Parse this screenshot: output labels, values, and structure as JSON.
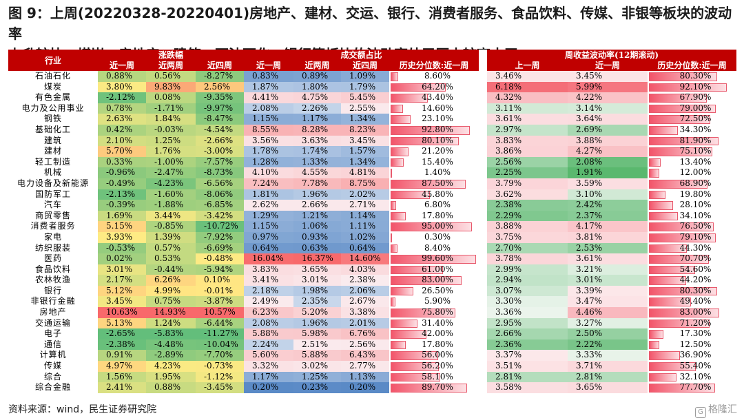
{
  "title_lines": [
    "图 9：上周(20220328-20220401)房地产、建材、交运、银行、消费者服务、食品饮料、传媒、非银等板块的波动率",
    "上升较快，煤炭、房地产、建筑、石油石化、银行等板块的波动率处于历史较高水平"
  ],
  "headers": {
    "industry": "行业",
    "group_change": "涨跌幅",
    "group_turnover": "成交额占比",
    "group_vol": "周收益波动率(12期滚动)",
    "change_cols": [
      "近一周",
      "近两周",
      "近四周"
    ],
    "turnover_cols": [
      "近一周",
      "近两周",
      "近四周",
      "历史分位数:近一周"
    ],
    "vol_cols": [
      "上一周",
      "近一周",
      "历史分位数:近一周"
    ]
  },
  "colors": {
    "header_bg": "#c00000",
    "pct_bar": "#f2556a"
  },
  "rows": [
    {
      "name": "石油石化",
      "chg": [
        "0.88%",
        "0.56%",
        "-8.27%"
      ],
      "to": [
        "0.83%",
        "0.89%",
        "1.09%"
      ],
      "to_pct": "8.60%",
      "vol": [
        "3.46%",
        "3.45%"
      ],
      "vol_pct": "80.30%"
    },
    {
      "name": "煤炭",
      "chg": [
        "3.80%",
        "9.83%",
        "2.56%"
      ],
      "to": [
        "1.87%",
        "1.80%",
        "1.79%"
      ],
      "to_pct": "64.20%",
      "vol": [
        "6.18%",
        "5.99%"
      ],
      "vol_pct": "92.10%"
    },
    {
      "name": "有色金属",
      "chg": [
        "-2.12%",
        "0.08%",
        "-9.35%"
      ],
      "to": [
        "4.41%",
        "4.75%",
        "5.45%"
      ],
      "to_pct": "43.40%",
      "vol": [
        "4.32%",
        "4.22%"
      ],
      "vol_pct": "67.90%"
    },
    {
      "name": "电力及公用事业",
      "chg": [
        "0.78%",
        "-1.71%",
        "-9.97%"
      ],
      "to": [
        "2.08%",
        "2.26%",
        "2.55%"
      ],
      "to_pct": "14.60%",
      "vol": [
        "3.11%",
        "3.14%"
      ],
      "vol_pct": "79.00%"
    },
    {
      "name": "钢铁",
      "chg": [
        "2.63%",
        "1.84%",
        "-8.47%"
      ],
      "to": [
        "1.15%",
        "1.17%",
        "1.34%"
      ],
      "to_pct": "23.10%",
      "vol": [
        "3.61%",
        "3.64%"
      ],
      "vol_pct": "72.50%"
    },
    {
      "name": "基础化工",
      "chg": [
        "0.42%",
        "-0.03%",
        "-4.54%"
      ],
      "to": [
        "8.55%",
        "8.28%",
        "8.23%"
      ],
      "to_pct": "92.80%",
      "vol": [
        "2.97%",
        "2.69%"
      ],
      "vol_pct": "34.30%"
    },
    {
      "name": "建筑",
      "chg": [
        "2.10%",
        "1.25%",
        "-2.66%"
      ],
      "to": [
        "3.56%",
        "3.63%",
        "3.45%"
      ],
      "to_pct": "80.10%",
      "vol": [
        "3.83%",
        "3.88%"
      ],
      "vol_pct": "81.90%"
    },
    {
      "name": "建材",
      "chg": [
        "5.70%",
        "1.76%",
        "-3.00%"
      ],
      "to": [
        "1.78%",
        "1.74%",
        "1.57%"
      ],
      "to_pct": "21.20%",
      "vol": [
        "3.86%",
        "4.27%"
      ],
      "vol_pct": "75.10%"
    },
    {
      "name": "轻工制造",
      "chg": [
        "0.33%",
        "-1.00%",
        "-7.57%"
      ],
      "to": [
        "1.28%",
        "1.33%",
        "1.34%"
      ],
      "to_pct": "15.40%",
      "vol": [
        "2.56%",
        "2.08%"
      ],
      "vol_pct": "13.40%"
    },
    {
      "name": "机械",
      "chg": [
        "-0.96%",
        "-2.47%",
        "-8.73%"
      ],
      "to": [
        "4.10%",
        "4.55%",
        "4.81%"
      ],
      "to_pct": "1.40%",
      "vol": [
        "2.25%",
        "1.91%"
      ],
      "vol_pct": "12.00%"
    },
    {
      "name": "电力设备及新能源",
      "chg": [
        "-0.49%",
        "-4.23%",
        "-6.56%"
      ],
      "to": [
        "7.24%",
        "7.78%",
        "8.75%"
      ],
      "to_pct": "87.50%",
      "vol": [
        "3.79%",
        "3.59%"
      ],
      "vol_pct": "68.90%"
    },
    {
      "name": "国防军工",
      "chg": [
        "-2.13%",
        "-1.60%",
        "-8.06%"
      ],
      "to": [
        "1.81%",
        "1.96%",
        "2.02%"
      ],
      "to_pct": "45.80%",
      "vol": [
        "3.62%",
        "3.10%"
      ],
      "vol_pct": "19.80%"
    },
    {
      "name": "汽车",
      "chg": [
        "-0.39%",
        "-1.88%",
        "-6.85%"
      ],
      "to": [
        "2.62%",
        "2.66%",
        "2.71%"
      ],
      "to_pct": "6.80%",
      "vol": [
        "2.38%",
        "2.42%"
      ],
      "vol_pct": "28.10%"
    },
    {
      "name": "商贸零售",
      "chg": [
        "1.69%",
        "3.44%",
        "-3.42%"
      ],
      "to": [
        "1.29%",
        "1.21%",
        "1.14%"
      ],
      "to_pct": "17.80%",
      "vol": [
        "2.29%",
        "2.37%"
      ],
      "vol_pct": "34.10%"
    },
    {
      "name": "消费者服务",
      "chg": [
        "5.15%",
        "-0.85%",
        "-10.72%"
      ],
      "to": [
        "1.15%",
        "1.06%",
        "1.11%"
      ],
      "to_pct": "95.00%",
      "vol": [
        "3.88%",
        "4.17%"
      ],
      "vol_pct": "76.50%"
    },
    {
      "name": "家电",
      "chg": [
        "3.93%",
        "1.39%",
        "-7.92%"
      ],
      "to": [
        "0.97%",
        "0.93%",
        "1.02%"
      ],
      "to_pct": "0.30%",
      "vol": [
        "3.75%",
        "3.81%"
      ],
      "vol_pct": "79.10%"
    },
    {
      "name": "纺织服装",
      "chg": [
        "-0.53%",
        "0.57%",
        "-6.69%"
      ],
      "to": [
        "0.64%",
        "0.63%",
        "0.64%"
      ],
      "to_pct": "8.40%",
      "vol": [
        "2.70%",
        "2.53%"
      ],
      "vol_pct": "44.30%"
    },
    {
      "name": "医药",
      "chg": [
        "0.02%",
        "0.53%",
        "-0.48%"
      ],
      "to": [
        "16.04%",
        "16.37%",
        "14.60%"
      ],
      "to_pct": "99.60%",
      "vol": [
        "3.78%",
        "3.61%"
      ],
      "vol_pct": "70.70%"
    },
    {
      "name": "食品饮料",
      "chg": [
        "3.01%",
        "-0.44%",
        "-5.94%"
      ],
      "to": [
        "3.83%",
        "3.65%",
        "4.03%"
      ],
      "to_pct": "61.00%",
      "vol": [
        "2.99%",
        "3.21%"
      ],
      "vol_pct": "54.60%"
    },
    {
      "name": "农林牧渔",
      "chg": [
        "2.17%",
        "6.26%",
        "0.10%"
      ],
      "to": [
        "3.41%",
        "3.01%",
        "2.38%"
      ],
      "to_pct": "83.00%",
      "vol": [
        "2.94%",
        "3.01%"
      ],
      "vol_pct": "44.20%"
    },
    {
      "name": "银行",
      "chg": [
        "5.12%",
        "4.99%",
        "-0.01%"
      ],
      "to": [
        "2.18%",
        "1.98%",
        "2.06%"
      ],
      "to_pct": "26.50%",
      "vol": [
        "3.07%",
        "3.39%"
      ],
      "vol_pct": "80.30%"
    },
    {
      "name": "非银行金融",
      "chg": [
        "3.45%",
        "0.75%",
        "-3.87%"
      ],
      "to": [
        "2.49%",
        "2.35%",
        "2.67%"
      ],
      "to_pct": "5.90%",
      "vol": [
        "3.30%",
        "3.47%"
      ],
      "vol_pct": "49.40%"
    },
    {
      "name": "房地产",
      "chg": [
        "10.63%",
        "14.93%",
        "10.57%"
      ],
      "to": [
        "6.23%",
        "5.20%",
        "3.38%"
      ],
      "to_pct": "75.80%",
      "vol": [
        "3.36%",
        "4.46%"
      ],
      "vol_pct": "83.00%"
    },
    {
      "name": "交通运输",
      "chg": [
        "5.13%",
        "1.24%",
        "-6.44%"
      ],
      "to": [
        "2.08%",
        "1.96%",
        "2.01%"
      ],
      "to_pct": "31.40%",
      "vol": [
        "2.95%",
        "3.27%"
      ],
      "vol_pct": "71.20%"
    },
    {
      "name": "电子",
      "chg": [
        "-2.65%",
        "-5.83%",
        "-11.27%"
      ],
      "to": [
        "5.88%",
        "5.98%",
        "6.76%"
      ],
      "to_pct": "42.00%",
      "vol": [
        "2.66%",
        "2.50%"
      ],
      "vol_pct": "17.30%"
    },
    {
      "name": "通信",
      "chg": [
        "-2.38%",
        "-4.48%",
        "-10.04%"
      ],
      "to": [
        "2.24%",
        "2.51%",
        "2.56%"
      ],
      "to_pct": "17.80%",
      "vol": [
        "2.36%",
        "2.22%"
      ],
      "vol_pct": "12.50%"
    },
    {
      "name": "计算机",
      "chg": [
        "0.91%",
        "-2.89%",
        "-7.70%"
      ],
      "to": [
        "5.60%",
        "5.88%",
        "6.43%"
      ],
      "to_pct": "56.00%",
      "vol": [
        "3.37%",
        "3.33%"
      ],
      "vol_pct": "36.90%"
    },
    {
      "name": "传媒",
      "chg": [
        "4.97%",
        "4.23%",
        "-0.73%"
      ],
      "to": [
        "3.32%",
        "3.02%",
        "2.77%"
      ],
      "to_pct": "56.20%",
      "vol": [
        "3.51%",
        "3.71%"
      ],
      "vol_pct": "55.40%"
    },
    {
      "name": "综合",
      "chg": [
        "1.56%",
        "1.95%",
        "-1.12%"
      ],
      "to": [
        "1.17%",
        "1.25%",
        "1.13%"
      ],
      "to_pct": "58.10%",
      "vol": [
        "2.81%",
        "2.81%"
      ],
      "vol_pct": "32.10%"
    },
    {
      "name": "综合金融",
      "chg": [
        "2.41%",
        "0.88%",
        "-3.45%"
      ],
      "to": [
        "0.20%",
        "0.23%",
        "0.20%"
      ],
      "to_pct": "89.70%",
      "vol": [
        "3.58%",
        "3.65%"
      ],
      "vol_pct": "77.70%"
    }
  ],
  "source": "资料来源：wind，民生证券研究院",
  "watermark": "格隆汇"
}
